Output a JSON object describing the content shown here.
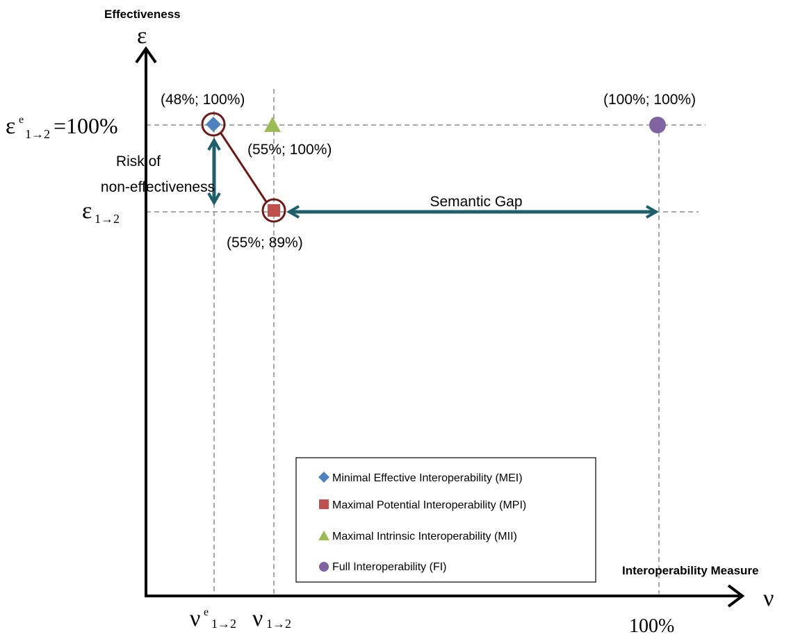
{
  "axes": {
    "y_title": "Effectiveness",
    "y_symbol": "ε",
    "x_title": "Interoperability Measure",
    "x_symbol": "ν"
  },
  "y_ticks": {
    "top": {
      "main": "ε",
      "sup": "e",
      "sub": "1→2",
      "suffix": "=100%"
    },
    "mid": {
      "main": "ε",
      "sub": "1→2"
    }
  },
  "x_ticks": {
    "left": {
      "main": "ν",
      "sup": "e",
      "sub": "1→2"
    },
    "mid": {
      "main": "ν",
      "sub": "1→2"
    },
    "right": "100%"
  },
  "points": {
    "mei_label": "(48%; 100%)",
    "mii_label": "(55%; 100%)",
    "mpi_label": "(55%; 89%)",
    "fi_label": "(100%; 100%)"
  },
  "annotations": {
    "risk_line1": "Risk of",
    "risk_line2": "non-effectiveness",
    "semantic_gap": "Semantic Gap"
  },
  "legend": {
    "items": [
      {
        "label": "Minimal Effective Interoperability (MEI)",
        "marker": "diamond",
        "color": "#4f81bd"
      },
      {
        "label": "Maximal Potential Interoperability (MPI)",
        "marker": "square",
        "color": "#c0504d"
      },
      {
        "label": "Maximal Intrinsic Interoperability (MII)",
        "marker": "triangle",
        "color": "#9bbb59"
      },
      {
        "label": "Full Interoperability (FI)",
        "marker": "circle",
        "color": "#8064a2"
      }
    ]
  },
  "colors": {
    "arrow": "#1f5f6b",
    "highlight_circle": "#6b1a1a",
    "guide": "#8c8c8c",
    "axis": "#000000"
  }
}
